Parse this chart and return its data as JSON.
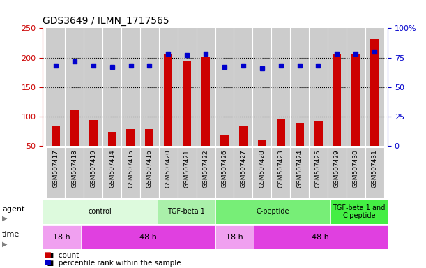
{
  "title": "GDS3649 / ILMN_1717565",
  "samples": [
    "GSM507417",
    "GSM507418",
    "GSM507419",
    "GSM507414",
    "GSM507415",
    "GSM507416",
    "GSM507420",
    "GSM507421",
    "GSM507422",
    "GSM507426",
    "GSM507427",
    "GSM507428",
    "GSM507423",
    "GSM507424",
    "GSM507425",
    "GSM507429",
    "GSM507430",
    "GSM507431"
  ],
  "counts": [
    83,
    112,
    94,
    74,
    79,
    79,
    206,
    193,
    201,
    68,
    83,
    60,
    96,
    89,
    93,
    207,
    205,
    231
  ],
  "percentiles": [
    68,
    72,
    68,
    67,
    68,
    68,
    78,
    77,
    78,
    67,
    68,
    66,
    68,
    68,
    68,
    78,
    78,
    80
  ],
  "ylim_left": [
    50,
    250
  ],
  "ylim_right": [
    0,
    100
  ],
  "yticks_left": [
    50,
    100,
    150,
    200,
    250
  ],
  "ytick_labels_left": [
    "50",
    "100",
    "150",
    "200",
    "250"
  ],
  "yticks_right": [
    0,
    25,
    50,
    75,
    100
  ],
  "ytick_labels_right": [
    "0",
    "25",
    "50",
    "75",
    "100%"
  ],
  "bar_color": "#cc0000",
  "dot_color": "#0000cc",
  "agent_groups": [
    {
      "label": "control",
      "start": 0,
      "end": 6,
      "color": "#ddfadd"
    },
    {
      "label": "TGF-beta 1",
      "start": 6,
      "end": 9,
      "color": "#aaf0aa"
    },
    {
      "label": "C-peptide",
      "start": 9,
      "end": 15,
      "color": "#77ee77"
    },
    {
      "label": "TGF-beta 1 and\nC-peptide",
      "start": 15,
      "end": 18,
      "color": "#44ee44"
    }
  ],
  "time_groups": [
    {
      "label": "18 h",
      "start": 0,
      "end": 2,
      "color": "#f0a0f0"
    },
    {
      "label": "48 h",
      "start": 2,
      "end": 9,
      "color": "#e040e0"
    },
    {
      "label": "18 h",
      "start": 9,
      "end": 11,
      "color": "#f0a0f0"
    },
    {
      "label": "48 h",
      "start": 11,
      "end": 18,
      "color": "#e040e0"
    }
  ],
  "legend_count_label": "count",
  "legend_pct_label": "percentile rank within the sample",
  "grid_color": "#000000",
  "axis_color_left": "#cc0000",
  "axis_color_right": "#0000cc",
  "bg_color": "#ffffff",
  "plot_bg": "#ffffff",
  "sample_bg": "#cccccc"
}
